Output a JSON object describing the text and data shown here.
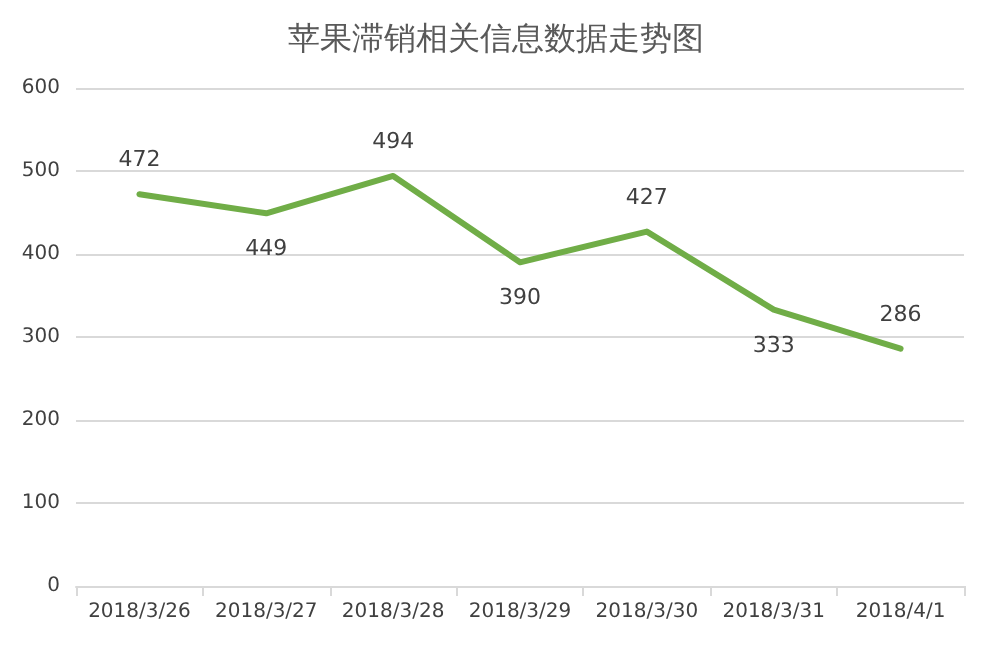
{
  "chart_data": {
    "type": "line",
    "title": "苹果滞销相关信息数据走势图",
    "categories": [
      "2018/3/26",
      "2018/3/27",
      "2018/3/28",
      "2018/3/29",
      "2018/3/30",
      "2018/3/31",
      "2018/4/1"
    ],
    "series": [
      {
        "color": "#70ad47",
        "values": [
          472,
          449,
          494,
          390,
          427,
          333,
          286
        ]
      }
    ],
    "ylim": [
      0,
      600
    ],
    "yticks": [
      0,
      100,
      200,
      300,
      400,
      500,
      600
    ],
    "grid": "y",
    "data_labels": true,
    "marker": "none",
    "line_style": "solid"
  }
}
